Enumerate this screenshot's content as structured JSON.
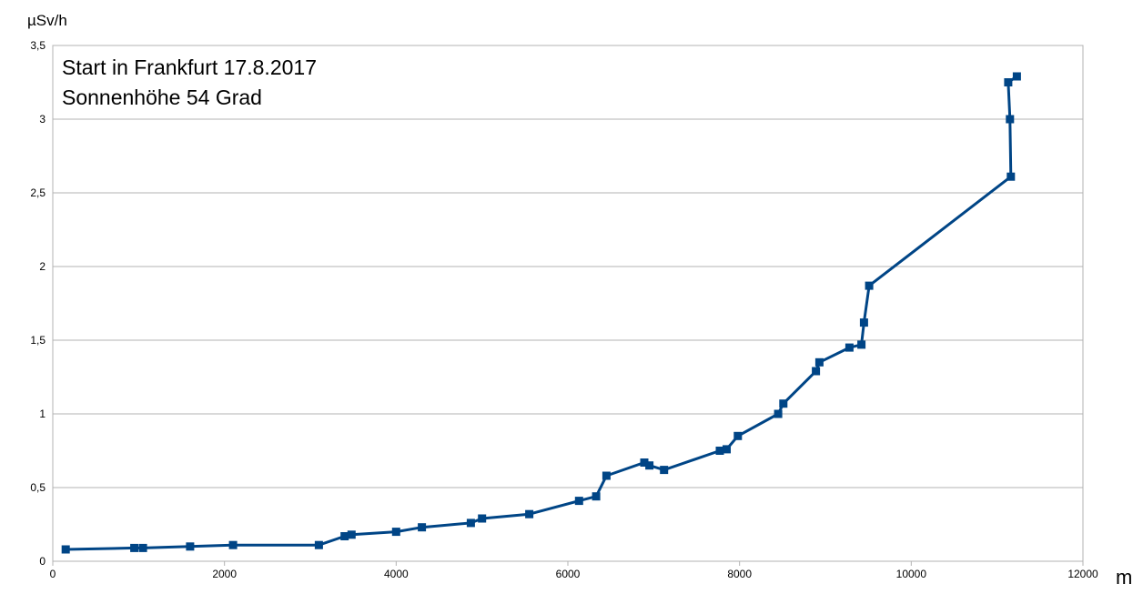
{
  "chart_data": {
    "type": "line",
    "ylabel": "µSv/h",
    "xlabel": "m",
    "annotations": [
      "Start in Frankfurt 17.8.2017",
      "Sonnenhöhe 54 Grad"
    ],
    "xlim": [
      0,
      12000
    ],
    "ylim": [
      0,
      3.5
    ],
    "x_ticks": [
      "0",
      "2000",
      "4000",
      "6000",
      "8000",
      "10000",
      "12000"
    ],
    "y_ticks": [
      "0",
      "0,5",
      "1",
      "1,5",
      "2",
      "2,5",
      "3",
      "3,5"
    ],
    "grid": "horizontal",
    "series": [
      {
        "color": "#004586",
        "marker": "square",
        "points": [
          [
            150,
            0.08
          ],
          [
            950,
            0.09
          ],
          [
            1050,
            0.09
          ],
          [
            1600,
            0.1
          ],
          [
            2100,
            0.11
          ],
          [
            3100,
            0.11
          ],
          [
            3400,
            0.17
          ],
          [
            3480,
            0.18
          ],
          [
            4000,
            0.2
          ],
          [
            4300,
            0.23
          ],
          [
            4870,
            0.26
          ],
          [
            5000,
            0.29
          ],
          [
            5550,
            0.32
          ],
          [
            6130,
            0.41
          ],
          [
            6330,
            0.44
          ],
          [
            6450,
            0.58
          ],
          [
            6890,
            0.67
          ],
          [
            6950,
            0.65
          ],
          [
            7120,
            0.62
          ],
          [
            7770,
            0.75
          ],
          [
            7850,
            0.76
          ],
          [
            7980,
            0.85
          ],
          [
            8450,
            1.0
          ],
          [
            8510,
            1.07
          ],
          [
            8890,
            1.29
          ],
          [
            8930,
            1.35
          ],
          [
            9280,
            1.45
          ],
          [
            9420,
            1.47
          ],
          [
            9450,
            1.62
          ],
          [
            9510,
            1.87
          ],
          [
            11160,
            2.61
          ],
          [
            11150,
            3.0
          ],
          [
            11130,
            3.25
          ],
          [
            11230,
            3.29
          ]
        ]
      }
    ]
  }
}
